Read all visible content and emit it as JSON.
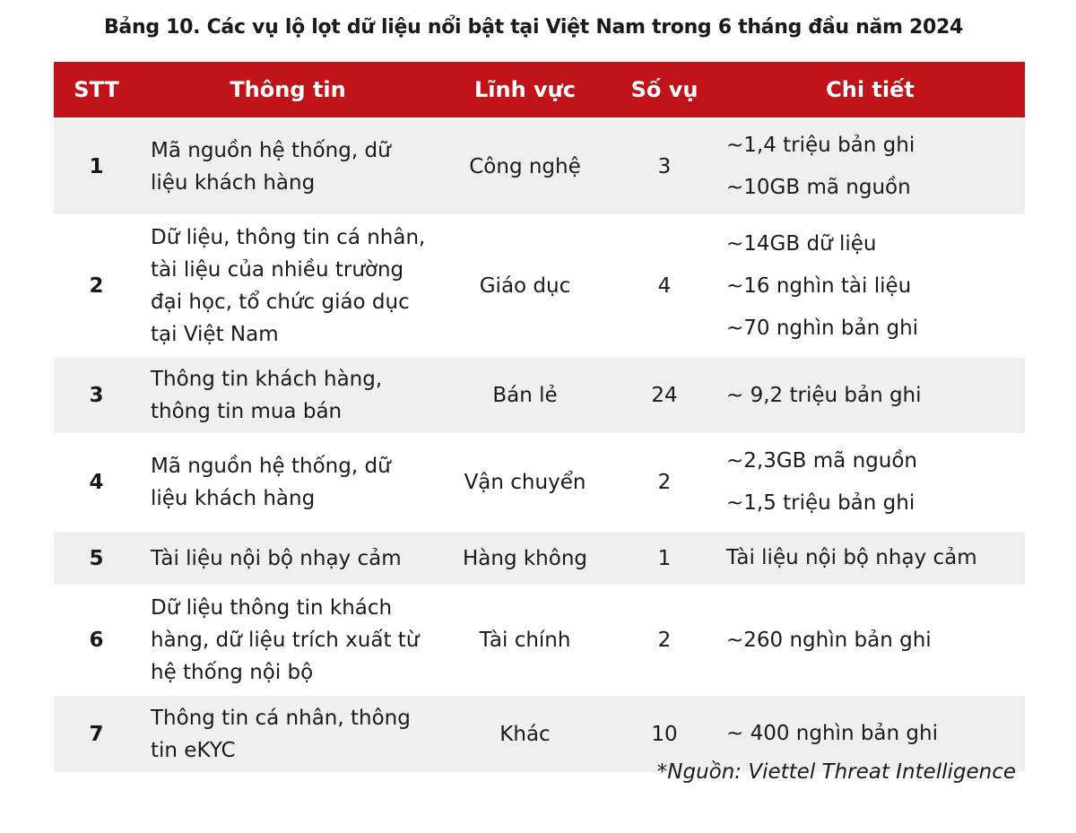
{
  "title": "Bảng 10. Các vụ lộ lọt dữ liệu nổi bật tại Việt Nam trong 6 tháng đầu năm 2024",
  "colors": {
    "header_bg": "#c0141a",
    "row_alt_bg": "#efefef"
  },
  "columns": [
    "STT",
    "Thông tin",
    "Lĩnh vực",
    "Số vụ",
    "Chi tiết"
  ],
  "rows": [
    {
      "stt": "1",
      "info": "Mã nguồn hệ thống, dữ liệu khách hàng",
      "field": "Công nghệ",
      "count": "3",
      "details": [
        "~1,4 triệu bản ghi",
        "~10GB mã nguồn"
      ]
    },
    {
      "stt": "2",
      "info": "Dữ liệu, thông tin cá nhân, tài liệu của nhiều trường đại học, tổ chức giáo dục tại Việt Nam",
      "field": "Giáo dục",
      "count": "4",
      "details": [
        "~14GB dữ liệu",
        "~16 nghìn tài liệu",
        "~70 nghìn bản ghi"
      ]
    },
    {
      "stt": "3",
      "info": "Thông tin khách hàng, thông tin mua bán",
      "field": "Bán lẻ",
      "count": "24",
      "details": [
        "~ 9,2 triệu bản ghi"
      ]
    },
    {
      "stt": "4",
      "info": "Mã nguồn hệ thống, dữ liệu khách hàng",
      "field": "Vận chuyển",
      "count": "2",
      "details": [
        "~2,3GB mã nguồn",
        "~1,5 triệu bản ghi"
      ]
    },
    {
      "stt": "5",
      "info": "Tài liệu nội bộ nhạy cảm",
      "field": "Hàng không",
      "count": "1",
      "details": [
        "Tài liệu nội bộ nhạy cảm"
      ]
    },
    {
      "stt": "6",
      "info": "Dữ liệu thông tin khách hàng, dữ liệu trích xuất từ hệ thống nội bộ",
      "field": "Tài chính",
      "count": "2",
      "details": [
        "~260 nghìn bản ghi"
      ]
    },
    {
      "stt": "7",
      "info": "Thông tin cá nhân, thông tin eKYC",
      "field": "Khác",
      "count": "10",
      "details": [
        "~ 400 nghìn bản ghi"
      ]
    }
  ],
  "source": "*Nguồn: Viettel Threat Intelligence"
}
